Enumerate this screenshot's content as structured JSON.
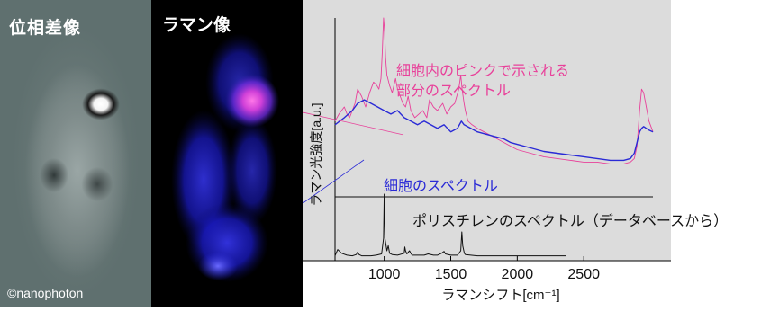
{
  "panels": {
    "phase_title": "位相差像",
    "raman_title": "ラマン像",
    "copyright": "©nanophoton"
  },
  "colors": {
    "pink": "#e8419a",
    "blue": "#2a2ad6",
    "black": "#111111",
    "plot_bg": "#dcdcdc"
  },
  "chart_data": {
    "type": "line",
    "title": "",
    "xlabel": "ラマンシフト[cm⁻¹]",
    "ylabel": "ラマン光強度[a.u.]",
    "xlim": [
      630,
      3020
    ],
    "xticks": [
      1000,
      1500,
      2000,
      2500
    ],
    "grid": false,
    "series": [
      {
        "name": "細胞内のピンクで示される部分のスペクトル",
        "color": "#e8419a",
        "x": [
          630,
          660,
          700,
          720,
          740,
          760,
          780,
          800,
          830,
          860,
          890,
          920,
          945,
          960,
          975,
          985,
          995,
          1003,
          1010,
          1020,
          1040,
          1060,
          1085,
          1100,
          1120,
          1140,
          1160,
          1180,
          1200,
          1230,
          1260,
          1290,
          1320,
          1340,
          1370,
          1400,
          1440,
          1470,
          1500,
          1530,
          1560,
          1575,
          1585,
          1600,
          1610,
          1630,
          1660,
          1700,
          1750,
          1800,
          1850,
          1900,
          1950,
          2000,
          2100,
          2200,
          2300,
          2400,
          2500,
          2600,
          2700,
          2800,
          2850,
          2880,
          2900,
          2920,
          2935,
          2950,
          2970,
          2990,
          3020
        ],
        "y": [
          0.42,
          0.46,
          0.5,
          0.46,
          0.44,
          0.48,
          0.52,
          0.6,
          0.56,
          0.5,
          0.58,
          0.64,
          0.62,
          0.6,
          0.66,
          0.8,
          1.0,
          0.92,
          0.78,
          0.68,
          0.62,
          0.58,
          0.66,
          0.6,
          0.56,
          0.52,
          0.5,
          0.56,
          0.48,
          0.44,
          0.46,
          0.48,
          0.44,
          0.54,
          0.5,
          0.48,
          0.52,
          0.46,
          0.5,
          0.52,
          0.6,
          0.68,
          0.6,
          0.52,
          0.48,
          0.42,
          0.4,
          0.38,
          0.36,
          0.34,
          0.32,
          0.3,
          0.28,
          0.26,
          0.24,
          0.22,
          0.21,
          0.2,
          0.19,
          0.19,
          0.18,
          0.18,
          0.19,
          0.21,
          0.28,
          0.48,
          0.6,
          0.58,
          0.5,
          0.42,
          0.36
        ]
      },
      {
        "name": "細胞のスペクトル",
        "color": "#2a2ad6",
        "x": [
          630,
          700,
          760,
          800,
          850,
          900,
          950,
          1000,
          1050,
          1100,
          1150,
          1200,
          1250,
          1300,
          1350,
          1400,
          1450,
          1500,
          1550,
          1580,
          1600,
          1650,
          1700,
          1750,
          1800,
          1850,
          1900,
          1950,
          2000,
          2100,
          2200,
          2300,
          2400,
          2500,
          2600,
          2700,
          2800,
          2850,
          2880,
          2900,
          2920,
          2935,
          2950,
          2970,
          2990,
          3020
        ],
        "y": [
          0.4,
          0.44,
          0.48,
          0.52,
          0.54,
          0.52,
          0.5,
          0.48,
          0.46,
          0.48,
          0.44,
          0.42,
          0.4,
          0.42,
          0.4,
          0.38,
          0.4,
          0.36,
          0.38,
          0.42,
          0.4,
          0.38,
          0.36,
          0.35,
          0.34,
          0.33,
          0.32,
          0.3,
          0.29,
          0.27,
          0.25,
          0.24,
          0.23,
          0.22,
          0.21,
          0.2,
          0.2,
          0.21,
          0.24,
          0.3,
          0.36,
          0.38,
          0.39,
          0.38,
          0.37,
          0.36
        ]
      },
      {
        "name": "ポリスチレンのスペクトル（データベースから）",
        "color": "#111111",
        "x": [
          630,
          650,
          680,
          720,
          760,
          790,
          800,
          810,
          830,
          870,
          900,
          940,
          980,
          995,
          1000,
          1005,
          1020,
          1030,
          1040,
          1060,
          1100,
          1150,
          1155,
          1160,
          1170,
          1190,
          1200,
          1210,
          1250,
          1300,
          1330,
          1370,
          1400,
          1430,
          1450,
          1460,
          1500,
          1550,
          1575,
          1583,
          1590,
          1602,
          1610,
          1650,
          1700,
          1750,
          1800,
          1850,
          1900,
          1950,
          2000,
          2100,
          2200,
          2300,
          2370
        ],
        "y": [
          0.02,
          0.12,
          0.06,
          0.03,
          0.02,
          0.04,
          0.08,
          0.04,
          0.02,
          0.02,
          0.02,
          0.03,
          0.05,
          0.3,
          1.0,
          0.3,
          0.1,
          0.18,
          0.06,
          0.04,
          0.03,
          0.06,
          0.16,
          0.1,
          0.05,
          0.1,
          0.06,
          0.03,
          0.03,
          0.03,
          0.05,
          0.03,
          0.03,
          0.06,
          0.09,
          0.05,
          0.03,
          0.03,
          0.1,
          0.4,
          0.18,
          0.06,
          0.04,
          0.03,
          0.02,
          0.02,
          0.02,
          0.02,
          0.02,
          0.02,
          0.02,
          0.02,
          0.02,
          0.02,
          0.02
        ]
      }
    ],
    "annotations": [
      "細胞内のピンクで示される",
      "部分のスペクトル",
      "細胞のスペクトル",
      "ポリスチレンのスペクトル（データベースから）"
    ]
  }
}
